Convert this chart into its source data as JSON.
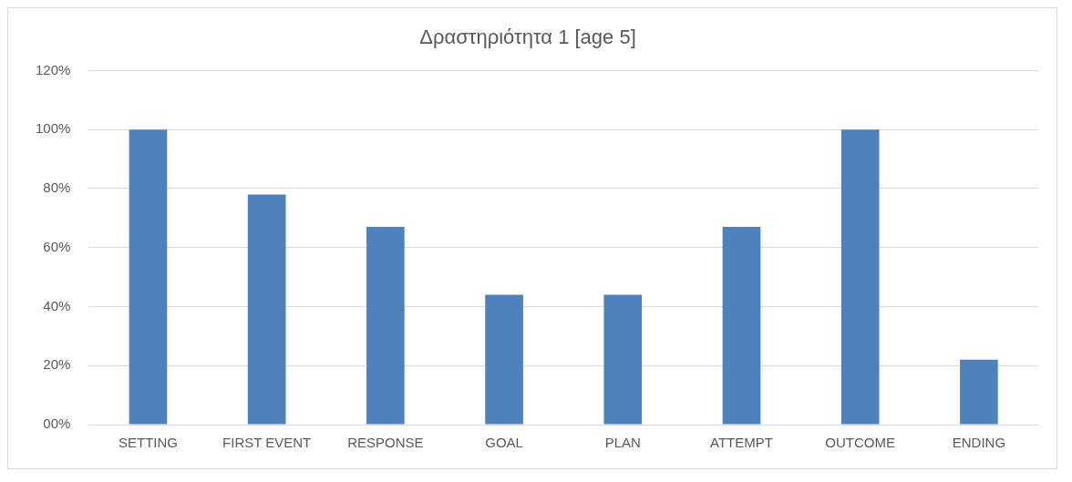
{
  "chart_data": {
    "type": "bar",
    "title": "Δραστηριότητα 1 [age 5]",
    "categories": [
      "SETTING",
      "FIRST EVENT",
      "RESPONSE",
      "GOAL",
      "PLAN",
      "ATTEMPT",
      "OUTCOME",
      "ENDING"
    ],
    "values": [
      100,
      78,
      67,
      44,
      44,
      67,
      100,
      22
    ],
    "color": "#4f81bd",
    "ylim": [
      0,
      120
    ],
    "yticks": [
      {
        "value": 0,
        "label": "00%"
      },
      {
        "value": 20,
        "label": "20%"
      },
      {
        "value": 40,
        "label": "40%"
      },
      {
        "value": 60,
        "label": "60%"
      },
      {
        "value": 80,
        "label": "80%"
      },
      {
        "value": 100,
        "label": "100%"
      },
      {
        "value": 120,
        "label": "120%"
      }
    ],
    "grid": "y",
    "legend": false
  }
}
